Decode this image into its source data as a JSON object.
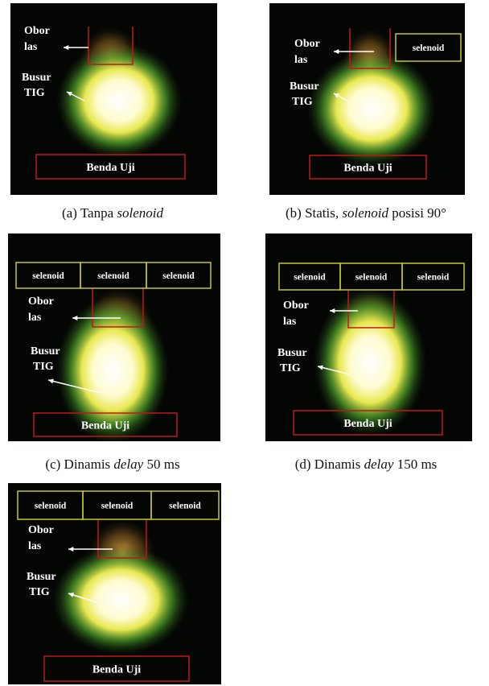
{
  "panels": [
    {
      "torch_label": [
        "Obor",
        "las"
      ],
      "arc_label": [
        "Busur",
        "TIG"
      ],
      "specimen": "Benda Uji",
      "solenoids": [],
      "caption": [
        {
          "text": "(a)"
        },
        {
          "text": "Tanpa"
        },
        {
          "text": "solenoid",
          "italic": true
        }
      ]
    },
    {
      "torch_label": [
        "Obor",
        "las"
      ],
      "arc_label": [
        "Busur",
        "TIG"
      ],
      "specimen": "Benda Uji",
      "solenoids": [
        "selenoid"
      ],
      "caption": [
        {
          "text": "(b)"
        },
        {
          "text": "Statis,"
        },
        {
          "text": "solenoid",
          "italic": true
        },
        {
          "text": "posisi"
        },
        {
          "text": "90°"
        }
      ]
    },
    {
      "torch_label": [
        "Obor",
        "las"
      ],
      "arc_label": [
        "Busur",
        "TIG"
      ],
      "specimen": "Benda Uji",
      "solenoids": [
        "selenoid",
        "selenoid",
        "selenoid"
      ],
      "caption": [
        {
          "text": "(c)"
        },
        {
          "text": "Dinamis"
        },
        {
          "text": "delay",
          "italic": true
        },
        {
          "text": "50"
        },
        {
          "text": "ms"
        }
      ]
    },
    {
      "torch_label": [
        "Obor",
        "las"
      ],
      "arc_label": [
        "Busur",
        "TIG"
      ],
      "specimen": "Benda Uji",
      "solenoids": [
        "selenoid",
        "selenoid",
        "selenoid"
      ],
      "caption": [
        {
          "text": "(d)"
        },
        {
          "text": "Dinamis"
        },
        {
          "text": "delay",
          "italic": true
        },
        {
          "text": "150"
        },
        {
          "text": "ms"
        }
      ]
    },
    {
      "torch_label": [
        "Obor",
        "las"
      ],
      "arc_label": [
        "Busur",
        "TIG"
      ],
      "specimen": "Benda Uji",
      "solenoids": [
        "selenoid",
        "selenoid",
        "selenoid"
      ],
      "caption": []
    }
  ]
}
